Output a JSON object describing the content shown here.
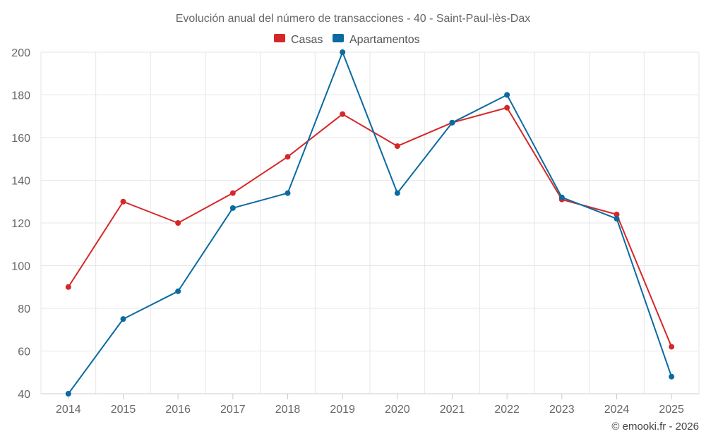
{
  "chart_data": {
    "type": "line",
    "title": "Evolución anual del número de transacciones - 40 - Saint-Paul-lès-Dax",
    "categories": [
      "2014",
      "2015",
      "2016",
      "2017",
      "2018",
      "2019",
      "2020",
      "2021",
      "2022",
      "2023",
      "2024",
      "2025"
    ],
    "series": [
      {
        "name": "Casas",
        "color": "#d62728",
        "values": [
          90,
          130,
          120,
          134,
          151,
          171,
          156,
          167,
          174,
          131,
          124,
          62
        ]
      },
      {
        "name": "Apartamentos",
        "color": "#0a6aa1",
        "values": [
          40,
          75,
          88,
          127,
          134,
          200,
          134,
          167,
          180,
          132,
          122,
          48
        ]
      }
    ],
    "ylim": [
      40,
      200
    ],
    "yticks": [
      40,
      60,
      80,
      100,
      120,
      140,
      160,
      180,
      200
    ],
    "grid": true,
    "legend_position": "top-center",
    "xlabel": "",
    "ylabel": ""
  },
  "credit": "© emooki.fr - 2026"
}
